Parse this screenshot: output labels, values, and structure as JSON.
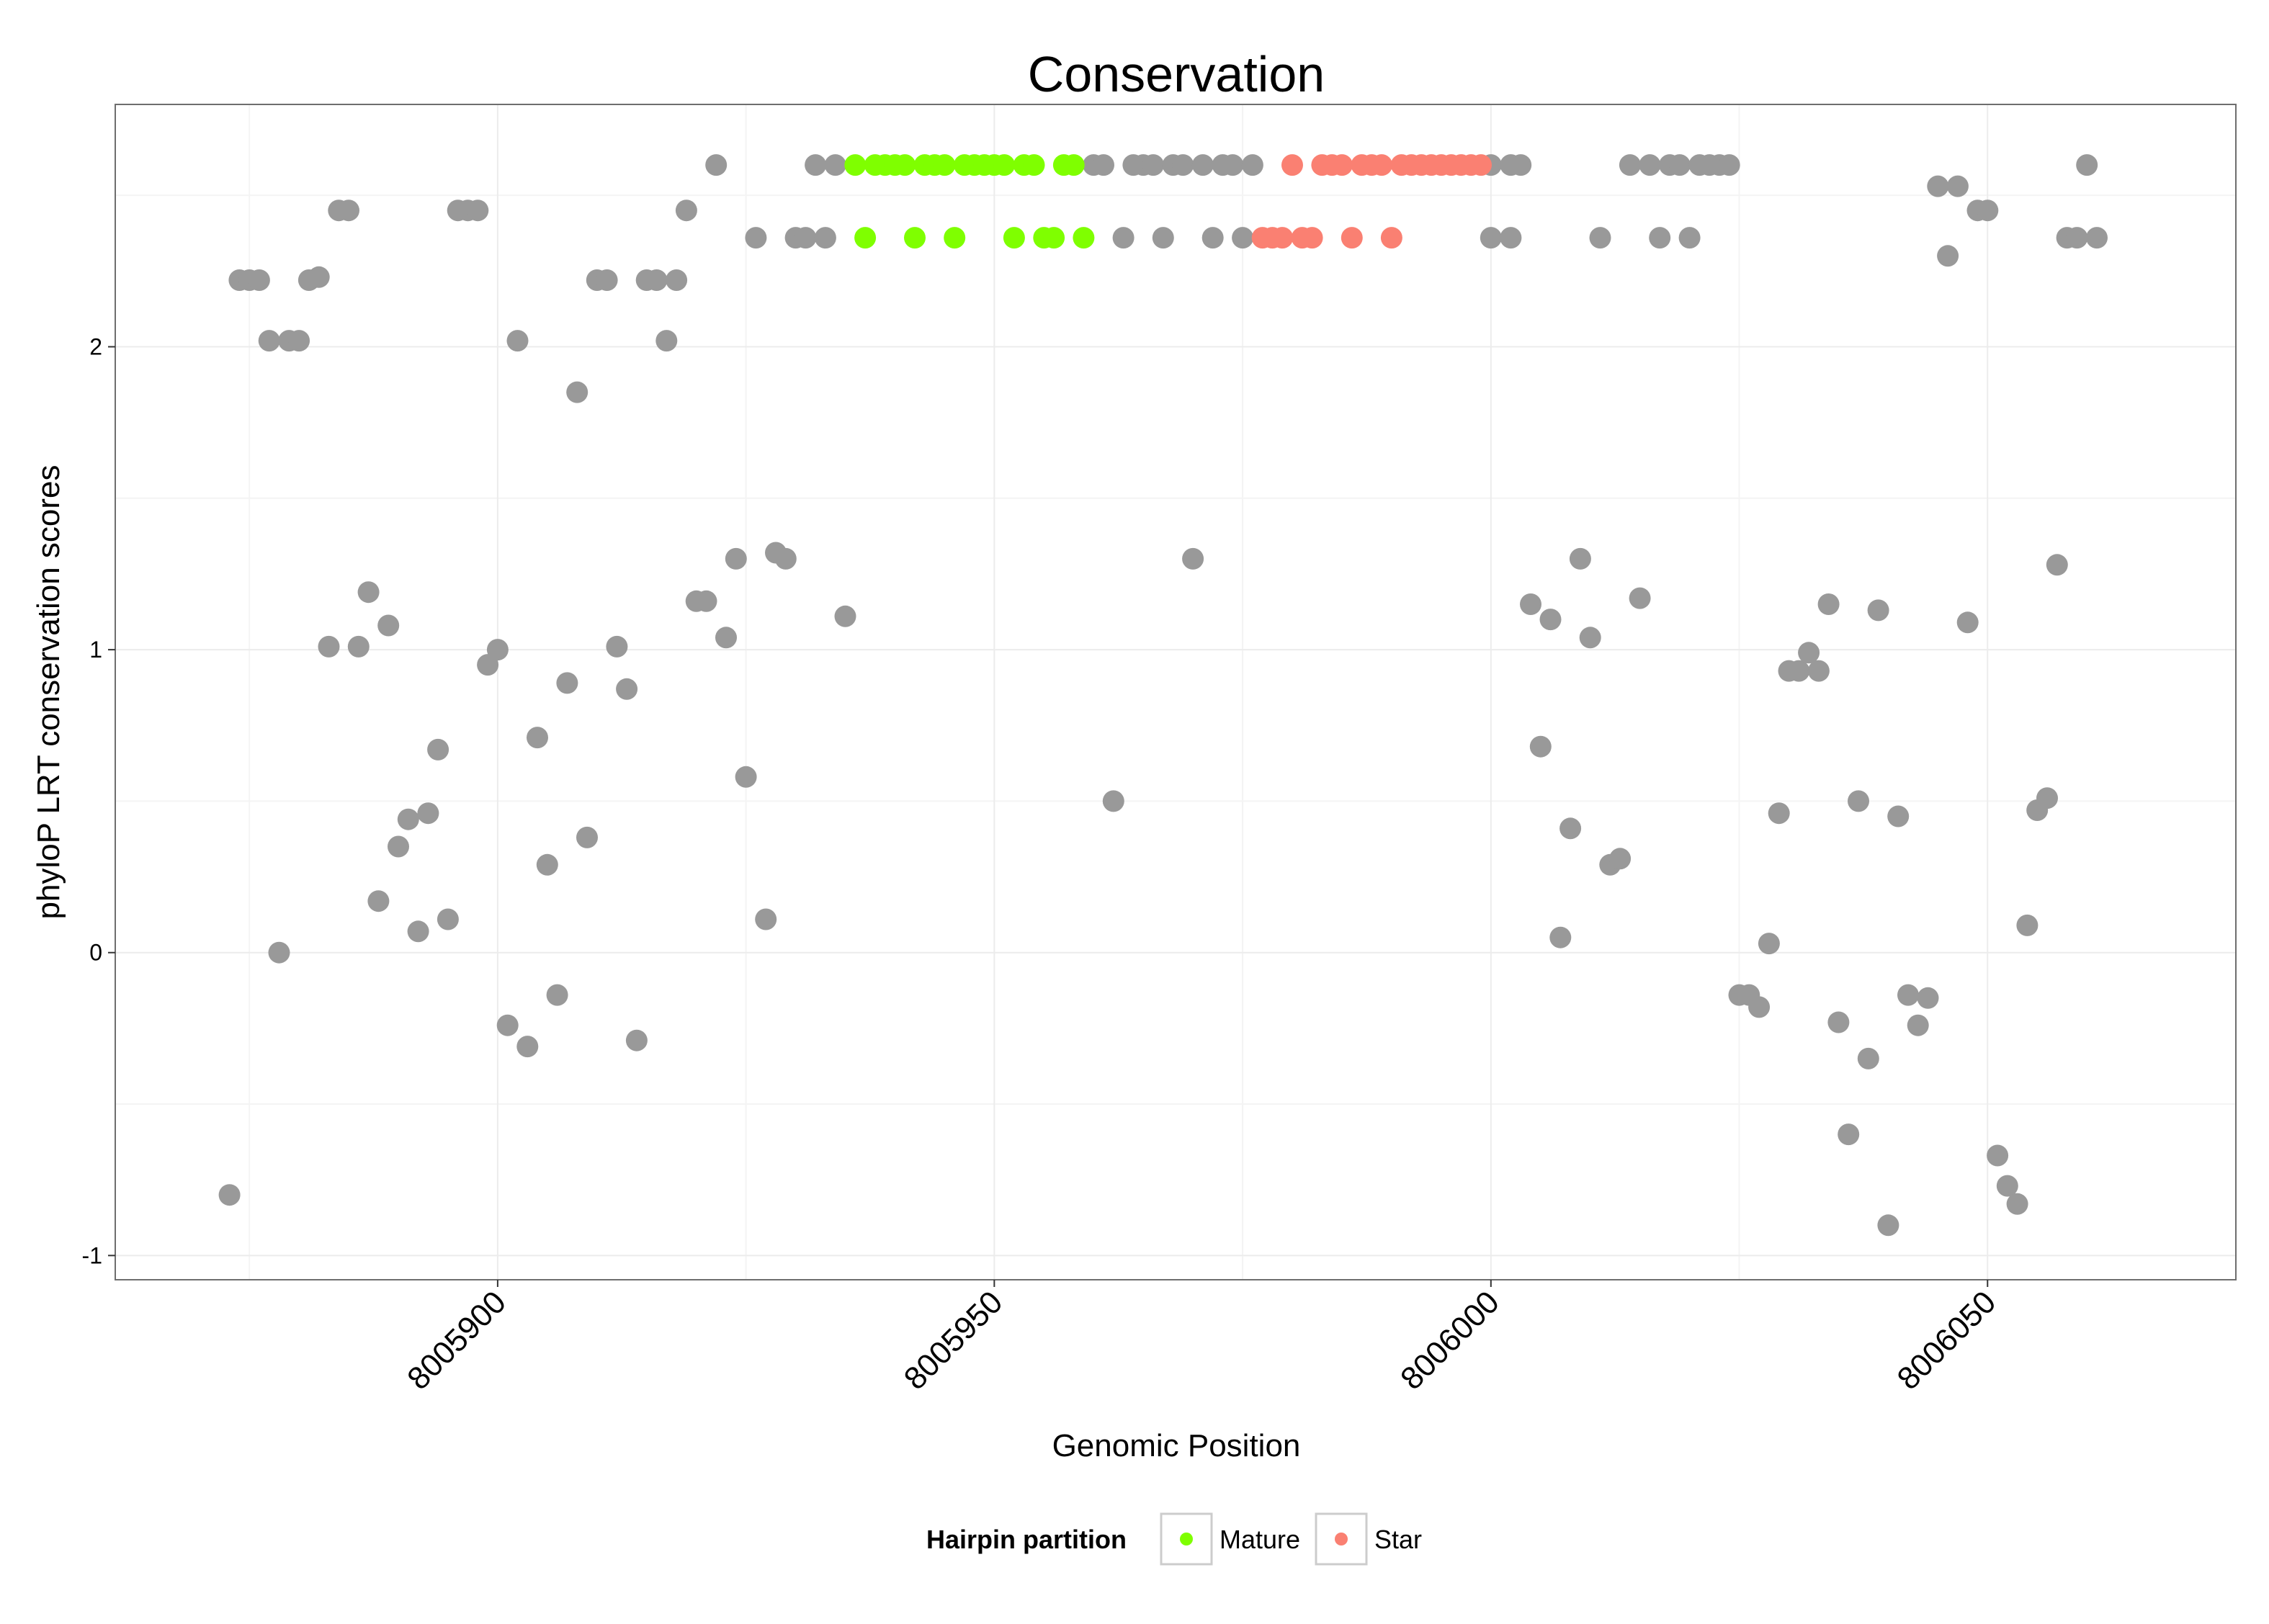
{
  "chart_data": {
    "type": "scatter",
    "title": "Conservation",
    "xlabel": "Genomic Position",
    "ylabel": "phyloP LRT conservation scores",
    "xlim": [
      8005861.5,
      8006075
    ],
    "ylim": [
      -1.08,
      2.8
    ],
    "xticks": [
      8005900,
      8005950,
      8006000,
      8006050
    ],
    "xtick_labels": [
      "8005900",
      "8005950",
      "8006000",
      "8006050"
    ],
    "yticks": [
      -1,
      0,
      1,
      2
    ],
    "ytick_labels": [
      "-1",
      "0",
      "1",
      "2"
    ],
    "grid": true,
    "legend_position": "bottom",
    "legend": {
      "title": "Hairpin partition",
      "entries": [
        {
          "label": "Mature",
          "color": "#7fff00"
        },
        {
          "label": "Star",
          "color": "#fa8072"
        }
      ]
    },
    "colors": {
      "other": "#999999",
      "Mature": "#7fff00",
      "Star": "#fa8072"
    },
    "series": [
      {
        "name": "Other",
        "color": "#999999",
        "points": [
          [
            8005873,
            -0.8
          ],
          [
            8005874,
            2.22
          ],
          [
            8005875,
            2.22
          ],
          [
            8005876,
            2.22
          ],
          [
            8005877,
            2.02
          ],
          [
            8005878,
            0.0
          ],
          [
            8005879,
            2.02
          ],
          [
            8005880,
            2.02
          ],
          [
            8005881,
            2.22
          ],
          [
            8005882,
            2.23
          ],
          [
            8005883,
            1.01
          ],
          [
            8005884,
            2.45
          ],
          [
            8005885,
            2.45
          ],
          [
            8005886,
            1.01
          ],
          [
            8005887,
            1.19
          ],
          [
            8005888,
            0.17
          ],
          [
            8005889,
            1.08
          ],
          [
            8005890,
            0.35
          ],
          [
            8005891,
            0.44
          ],
          [
            8005892,
            0.07
          ],
          [
            8005893,
            0.46
          ],
          [
            8005894,
            0.67
          ],
          [
            8005895,
            0.11
          ],
          [
            8005896,
            2.45
          ],
          [
            8005897,
            2.45
          ],
          [
            8005898,
            2.45
          ],
          [
            8005899,
            0.95
          ],
          [
            8005900,
            1.0
          ],
          [
            8005901,
            -0.24
          ],
          [
            8005902,
            2.02
          ],
          [
            8005903,
            -0.31
          ],
          [
            8005904,
            0.71
          ],
          [
            8005905,
            0.29
          ],
          [
            8005906,
            -0.14
          ],
          [
            8005907,
            0.89
          ],
          [
            8005908,
            1.85
          ],
          [
            8005909,
            0.38
          ],
          [
            8005910,
            2.22
          ],
          [
            8005911,
            2.22
          ],
          [
            8005912,
            1.01
          ],
          [
            8005913,
            0.87
          ],
          [
            8005914,
            -0.29
          ],
          [
            8005915,
            2.22
          ],
          [
            8005916,
            2.22
          ],
          [
            8005917,
            2.02
          ],
          [
            8005918,
            2.22
          ],
          [
            8005919,
            2.45
          ],
          [
            8005920,
            1.16
          ],
          [
            8005921,
            1.16
          ],
          [
            8005922,
            2.6
          ],
          [
            8005923,
            1.04
          ],
          [
            8005924,
            1.3
          ],
          [
            8005925,
            0.58
          ],
          [
            8005926,
            2.36
          ],
          [
            8005927,
            0.11
          ],
          [
            8005928,
            1.32
          ],
          [
            8005929,
            1.3
          ],
          [
            8005930,
            2.36
          ],
          [
            8005931,
            2.36
          ],
          [
            8005932,
            2.6
          ],
          [
            8005933,
            2.36
          ],
          [
            8005934,
            2.6
          ],
          [
            8005935,
            1.11
          ],
          [
            8005960,
            2.6
          ],
          [
            8005961,
            2.6
          ],
          [
            8005962,
            0.5
          ],
          [
            8005963,
            2.36
          ],
          [
            8005964,
            2.6
          ],
          [
            8005965,
            2.6
          ],
          [
            8005966,
            2.6
          ],
          [
            8005967,
            2.36
          ],
          [
            8005968,
            2.6
          ],
          [
            8005969,
            2.6
          ],
          [
            8005970,
            1.3
          ],
          [
            8005971,
            2.6
          ],
          [
            8005972,
            2.36
          ],
          [
            8005973,
            2.6
          ],
          [
            8005974,
            2.6
          ],
          [
            8005975,
            2.36
          ],
          [
            8005976,
            2.6
          ],
          [
            8006000,
            2.6
          ],
          [
            8006000,
            2.36
          ],
          [
            8006002,
            2.6
          ],
          [
            8006002,
            2.36
          ],
          [
            8006003,
            2.6
          ],
          [
            8006004,
            1.15
          ],
          [
            8006005,
            0.68
          ],
          [
            8006006,
            1.1
          ],
          [
            8006007,
            0.05
          ],
          [
            8006008,
            0.41
          ],
          [
            8006009,
            1.3
          ],
          [
            8006010,
            1.04
          ],
          [
            8006011,
            2.36
          ],
          [
            8006012,
            0.29
          ],
          [
            8006013,
            0.31
          ],
          [
            8006014,
            2.6
          ],
          [
            8006015,
            1.17
          ],
          [
            8006016,
            2.6
          ],
          [
            8006017,
            2.36
          ],
          [
            8006018,
            2.6
          ],
          [
            8006019,
            2.6
          ],
          [
            8006020,
            2.36
          ],
          [
            8006021,
            2.6
          ],
          [
            8006022,
            2.6
          ],
          [
            8006023,
            2.6
          ],
          [
            8006024,
            2.6
          ],
          [
            8006025,
            -0.14
          ],
          [
            8006026,
            -0.14
          ],
          [
            8006027,
            -0.18
          ],
          [
            8006028,
            0.03
          ],
          [
            8006029,
            0.46
          ],
          [
            8006030,
            0.93
          ],
          [
            8006031,
            0.93
          ],
          [
            8006032,
            0.99
          ],
          [
            8006033,
            0.93
          ],
          [
            8006034,
            1.15
          ],
          [
            8006035,
            -0.23
          ],
          [
            8006036,
            -0.6
          ],
          [
            8006037,
            0.5
          ],
          [
            8006038,
            -0.35
          ],
          [
            8006039,
            1.13
          ],
          [
            8006040,
            -0.9
          ],
          [
            8006041,
            0.45
          ],
          [
            8006042,
            -0.14
          ],
          [
            8006043,
            -0.24
          ],
          [
            8006044,
            -0.15
          ],
          [
            8006045,
            2.53
          ],
          [
            8006046,
            2.3
          ],
          [
            8006047,
            2.53
          ],
          [
            8006048,
            1.09
          ],
          [
            8006049,
            2.45
          ],
          [
            8006050,
            2.45
          ],
          [
            8006051,
            -0.67
          ],
          [
            8006052,
            -0.77
          ],
          [
            8006053,
            -0.83
          ],
          [
            8006054,
            0.09
          ],
          [
            8006055,
            0.47
          ],
          [
            8006056,
            0.51
          ],
          [
            8006057,
            1.28
          ],
          [
            8006058,
            2.36
          ],
          [
            8006059,
            2.36
          ],
          [
            8006060,
            2.6
          ],
          [
            8006061,
            2.36
          ]
        ]
      },
      {
        "name": "Mature",
        "color": "#7fff00",
        "points": [
          [
            8005936,
            2.6
          ],
          [
            8005937,
            2.36
          ],
          [
            8005938,
            2.6
          ],
          [
            8005939,
            2.6
          ],
          [
            8005940,
            2.6
          ],
          [
            8005941,
            2.6
          ],
          [
            8005942,
            2.36
          ],
          [
            8005943,
            2.6
          ],
          [
            8005944,
            2.6
          ],
          [
            8005945,
            2.6
          ],
          [
            8005946,
            2.36
          ],
          [
            8005947,
            2.6
          ],
          [
            8005948,
            2.6
          ],
          [
            8005949,
            2.6
          ],
          [
            8005950,
            2.6
          ],
          [
            8005951,
            2.6
          ],
          [
            8005952,
            2.36
          ],
          [
            8005953,
            2.6
          ],
          [
            8005954,
            2.6
          ],
          [
            8005955,
            2.36
          ],
          [
            8005956,
            2.36
          ],
          [
            8005957,
            2.6
          ],
          [
            8005958,
            2.6
          ],
          [
            8005959,
            2.36
          ]
        ]
      },
      {
        "name": "Star",
        "color": "#fa8072",
        "points": [
          [
            8005977,
            2.36
          ],
          [
            8005978,
            2.36
          ],
          [
            8005979,
            2.36
          ],
          [
            8005980,
            2.6
          ],
          [
            8005981,
            2.36
          ],
          [
            8005982,
            2.36
          ],
          [
            8005983,
            2.6
          ],
          [
            8005984,
            2.6
          ],
          [
            8005985,
            2.6
          ],
          [
            8005986,
            2.36
          ],
          [
            8005987,
            2.6
          ],
          [
            8005988,
            2.6
          ],
          [
            8005989,
            2.6
          ],
          [
            8005990,
            2.36
          ],
          [
            8005991,
            2.6
          ],
          [
            8005992,
            2.6
          ],
          [
            8005993,
            2.6
          ],
          [
            8005994,
            2.6
          ],
          [
            8005995,
            2.6
          ],
          [
            8005996,
            2.6
          ],
          [
            8005997,
            2.6
          ],
          [
            8005998,
            2.6
          ],
          [
            8005999,
            2.6
          ]
        ]
      }
    ]
  }
}
